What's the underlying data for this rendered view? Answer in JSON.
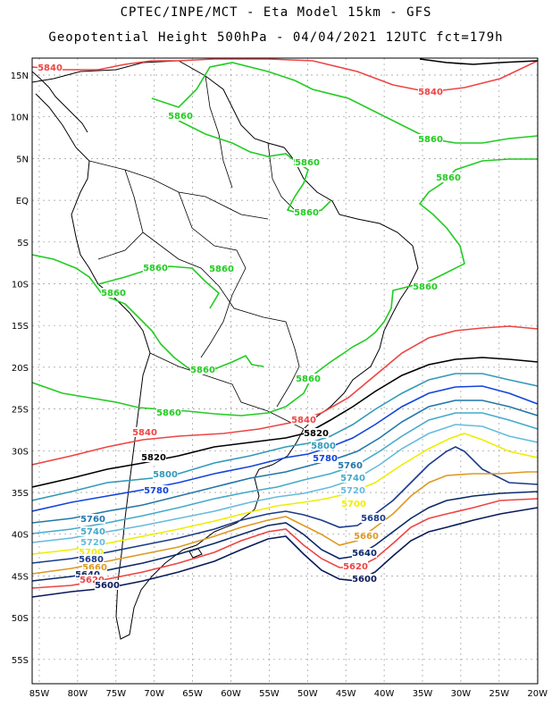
{
  "title_line1": "CPTEC/INPE/MCT -  Eta Model 15km - GFS",
  "title_line2": "Geopotential Height 500hPa - 04/04/2021 12UTC fct=179h",
  "lat_labels": [
    "15N",
    "10N",
    "5N",
    "EQ",
    "5S",
    "10S",
    "15S",
    "20S",
    "25S",
    "30S",
    "35S",
    "40S",
    "45S",
    "50S",
    "55S"
  ],
  "lon_labels": [
    "85W",
    "80W",
    "75W",
    "70W",
    "65W",
    "60W",
    "55W",
    "50W",
    "45W",
    "40W",
    "35W",
    "30W",
    "25W",
    "20W"
  ],
  "colors": {
    "5860": "#22cc22",
    "5840": "#ee4444",
    "5820": "#000000",
    "5800": "#3399bb",
    "5780": "#1144dd",
    "5760": "#2277aa",
    "5740": "#44aacc",
    "5720": "#66bbdd",
    "5700": "#eeee00",
    "5680": "#1a3a8a",
    "5660": "#dd9922",
    "5640": "#0a2a6a",
    "5620": "#ee4444",
    "5600": "#0a1a5a"
  },
  "contour_labels": [
    {
      "text": "5840",
      "key": "5840"
    },
    {
      "text": "5840",
      "key": "5840"
    },
    {
      "text": "5860",
      "key": "5860"
    },
    {
      "text": "5860",
      "key": "5860"
    },
    {
      "text": "5860",
      "key": "5860"
    },
    {
      "text": "5860",
      "key": "5860"
    },
    {
      "text": "5860",
      "key": "5860"
    },
    {
      "text": "5860",
      "key": "5860"
    },
    {
      "text": "5860",
      "key": "5860"
    },
    {
      "text": "5860",
      "key": "5860"
    },
    {
      "text": "5860",
      "key": "5860"
    },
    {
      "text": "5860",
      "key": "5860"
    },
    {
      "text": "5860",
      "key": "5860"
    },
    {
      "text": "5860",
      "key": "5860"
    },
    {
      "text": "5860",
      "key": "5860"
    },
    {
      "text": "5840",
      "key": "5840"
    },
    {
      "text": "5840",
      "key": "5840"
    },
    {
      "text": "5820",
      "key": "5820"
    },
    {
      "text": "5820",
      "key": "5820"
    },
    {
      "text": "5800",
      "key": "5800"
    },
    {
      "text": "5800",
      "key": "5800"
    },
    {
      "text": "5780",
      "key": "5780"
    },
    {
      "text": "5780",
      "key": "5780"
    },
    {
      "text": "5760",
      "key": "5760"
    },
    {
      "text": "5760",
      "key": "5760"
    },
    {
      "text": "5740",
      "key": "5740"
    },
    {
      "text": "5740",
      "key": "5740"
    },
    {
      "text": "5720",
      "key": "5720"
    },
    {
      "text": "5720",
      "key": "5720"
    },
    {
      "text": "5700",
      "key": "5700"
    },
    {
      "text": "5700",
      "key": "5700"
    },
    {
      "text": "5680",
      "key": "5680"
    },
    {
      "text": "5680",
      "key": "5680"
    },
    {
      "text": "5660",
      "key": "5660"
    },
    {
      "text": "5660",
      "key": "5660"
    },
    {
      "text": "5640",
      "key": "5640"
    },
    {
      "text": "5640",
      "key": "5640"
    },
    {
      "text": "5620",
      "key": "5620"
    },
    {
      "text": "5620",
      "key": "5620"
    },
    {
      "text": "5600",
      "key": "5600"
    },
    {
      "text": "5600",
      "key": "5600"
    }
  ]
}
